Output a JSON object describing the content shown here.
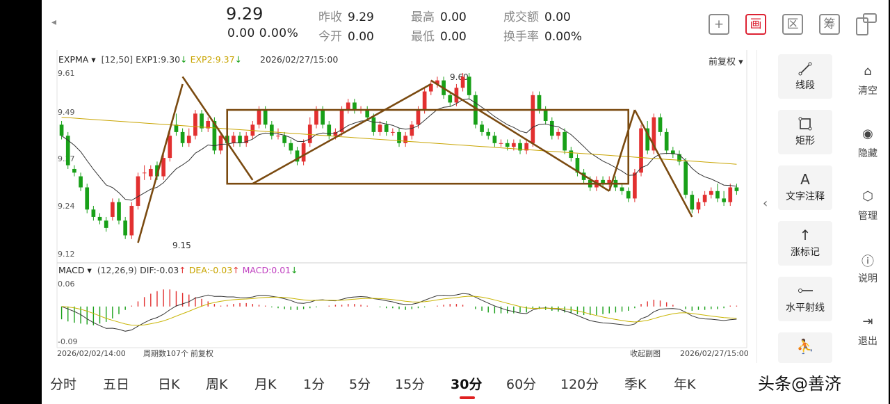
{
  "header": {
    "back_icon": "chevron-left",
    "price": "9.29",
    "change": "0.00  0.00%",
    "quotes": [
      {
        "label": "昨收",
        "value": "9.29"
      },
      {
        "label": "今开",
        "value": "0.00"
      },
      {
        "label": "最高",
        "value": "0.00"
      },
      {
        "label": "最低",
        "value": "0.00"
      },
      {
        "label": "成交额",
        "value": "0.00"
      },
      {
        "label": "换手率",
        "value": "0.00%"
      }
    ],
    "tool_icons": {
      "add": "+",
      "draw": "画",
      "range": "区",
      "chips": "筹"
    }
  },
  "kline_panel": {
    "indicator": "EXPMA",
    "params": "[12,50]",
    "exp1_label": "EXP1:9.30",
    "exp2_label": "EXP2:9.37",
    "datetime": "2026/02/27/15:00",
    "adjust": "前复权",
    "y_labels": [
      "9.61",
      "9.49",
      "9.37",
      "9.24",
      "9.12"
    ],
    "high_mark": "9.60",
    "low_mark": "9.15"
  },
  "macd_panel": {
    "indicator": "MACD",
    "params": "(12,26,9)",
    "dif_label": "DIF:-0.03",
    "dea_label": "DEA:-0.03",
    "macd_label": "MACD:0.01",
    "y_top": "0.06",
    "y_bottom": "-0.09"
  },
  "footer": {
    "start": "2026/02/02/14:00",
    "count": "周期数107个",
    "adjust": "前复权",
    "collapse": "收起副图",
    "end": "2026/02/27/15:00"
  },
  "tools": [
    "线段",
    "矩形",
    "文字注释",
    "涨标记",
    "水平射线"
  ],
  "side_actions": [
    "清空",
    "隐藏",
    "管理",
    "说明",
    "退出"
  ],
  "tabs": [
    "分时",
    "五日",
    "日K",
    "周K",
    "月K",
    "1分",
    "5分",
    "15分",
    "30分",
    "60分",
    "120分",
    "季K",
    "年K"
  ],
  "active_tab": "30分",
  "watermark": "头条@善济",
  "colors": {
    "up": "#e23030",
    "down": "#18a018",
    "exp1": "#333333",
    "exp2": "#c8a400",
    "drawing": "#7a4a10",
    "dea": "#c8b400",
    "macd_label": "#c040c0"
  },
  "chart_data": {
    "type": "candlestick",
    "x_range": [
      "2026/02/02/14:00",
      "2026/02/27/15:00"
    ],
    "periods": 107,
    "ylim": [
      9.12,
      9.61
    ],
    "y_ticks": [
      9.61,
      9.49,
      9.37,
      9.24,
      9.12
    ],
    "open": [
      9.47,
      9.44,
      9.35,
      9.33,
      9.3,
      9.24,
      9.22,
      9.21,
      9.22,
      9.26,
      9.21,
      9.17,
      9.25,
      9.34,
      9.33,
      9.36,
      9.33,
      9.38,
      9.47,
      9.45,
      9.42,
      9.44,
      9.5,
      9.46,
      9.48,
      9.4,
      9.44,
      9.42,
      9.44,
      9.42,
      9.44,
      9.47,
      9.51,
      9.47,
      9.44,
      9.44,
      9.42,
      9.4,
      9.37,
      9.42,
      9.47,
      9.51,
      9.47,
      9.44,
      9.45,
      9.51,
      9.53,
      9.51,
      9.51,
      9.49,
      9.45,
      9.47,
      9.45,
      9.45,
      9.42,
      9.44,
      9.47,
      9.51,
      9.56,
      9.58,
      9.59,
      9.55,
      9.53,
      9.57,
      9.6,
      9.55,
      9.47,
      9.45,
      9.44,
      9.42,
      9.42,
      9.41,
      9.42,
      9.4,
      9.42,
      9.55,
      9.51,
      9.48,
      9.44,
      9.45,
      9.4,
      9.38,
      9.34,
      9.32,
      9.3,
      9.32,
      9.31,
      9.32,
      9.3,
      9.29,
      9.27,
      9.34,
      9.46,
      9.4,
      9.49,
      9.45,
      9.4,
      9.39,
      9.37,
      9.28,
      9.24,
      9.26,
      9.28,
      9.29,
      9.27,
      9.26,
      9.3
    ],
    "close": [
      9.44,
      9.36,
      9.34,
      9.3,
      9.24,
      9.22,
      9.21,
      9.19,
      9.26,
      9.21,
      9.17,
      9.25,
      9.33,
      9.34,
      9.35,
      9.33,
      9.38,
      9.44,
      9.45,
      9.42,
      9.44,
      9.5,
      9.46,
      9.48,
      9.4,
      9.44,
      9.42,
      9.44,
      9.42,
      9.44,
      9.47,
      9.51,
      9.47,
      9.44,
      9.44,
      9.42,
      9.4,
      9.37,
      9.42,
      9.47,
      9.51,
      9.47,
      9.44,
      9.45,
      9.51,
      9.53,
      9.51,
      9.51,
      9.49,
      9.45,
      9.47,
      9.45,
      9.45,
      9.42,
      9.44,
      9.47,
      9.51,
      9.56,
      9.58,
      9.59,
      9.55,
      9.53,
      9.57,
      9.6,
      9.55,
      9.47,
      9.45,
      9.44,
      9.42,
      9.42,
      9.41,
      9.42,
      9.4,
      9.42,
      9.55,
      9.51,
      9.48,
      9.44,
      9.45,
      9.4,
      9.38,
      9.34,
      9.32,
      9.3,
      9.32,
      9.31,
      9.32,
      9.3,
      9.29,
      9.27,
      9.34,
      9.46,
      9.4,
      9.49,
      9.45,
      9.4,
      9.39,
      9.37,
      9.28,
      9.24,
      9.26,
      9.28,
      9.29,
      9.27,
      9.26,
      9.3,
      9.29
    ],
    "high": [
      9.48,
      9.45,
      9.36,
      9.34,
      9.31,
      9.25,
      9.23,
      9.22,
      9.27,
      9.27,
      9.22,
      9.26,
      9.34,
      9.36,
      9.36,
      9.37,
      9.39,
      9.46,
      9.5,
      9.46,
      9.46,
      9.51,
      9.51,
      9.49,
      9.49,
      9.45,
      9.45,
      9.45,
      9.45,
      9.45,
      9.48,
      9.52,
      9.52,
      9.48,
      9.46,
      9.45,
      9.43,
      9.41,
      9.43,
      9.49,
      9.52,
      9.52,
      9.48,
      9.46,
      9.52,
      9.54,
      9.54,
      9.52,
      9.52,
      9.5,
      9.48,
      9.48,
      9.46,
      9.46,
      9.45,
      9.48,
      9.52,
      9.57,
      9.59,
      9.6,
      9.6,
      9.56,
      9.58,
      9.61,
      9.61,
      9.56,
      9.48,
      9.46,
      9.45,
      9.43,
      9.43,
      9.43,
      9.43,
      9.43,
      9.56,
      9.56,
      9.52,
      9.49,
      9.46,
      9.46,
      9.41,
      9.39,
      9.35,
      9.33,
      9.33,
      9.33,
      9.33,
      9.33,
      9.31,
      9.3,
      9.35,
      9.47,
      9.48,
      9.5,
      9.5,
      9.46,
      9.41,
      9.4,
      9.38,
      9.29,
      9.27,
      9.29,
      9.3,
      9.31,
      9.29,
      9.31,
      9.31
    ],
    "low": [
      9.43,
      9.35,
      9.33,
      9.29,
      9.23,
      9.21,
      9.2,
      9.18,
      9.21,
      9.2,
      9.16,
      9.16,
      9.24,
      9.32,
      9.32,
      9.32,
      9.32,
      9.37,
      9.44,
      9.41,
      9.41,
      9.43,
      9.45,
      9.45,
      9.39,
      9.39,
      9.41,
      9.41,
      9.41,
      9.41,
      9.43,
      9.46,
      9.46,
      9.43,
      9.43,
      9.41,
      9.39,
      9.36,
      9.36,
      9.41,
      9.46,
      9.46,
      9.43,
      9.43,
      9.44,
      9.5,
      9.5,
      9.5,
      9.48,
      9.44,
      9.44,
      9.44,
      9.44,
      9.41,
      9.41,
      9.43,
      9.46,
      9.5,
      9.55,
      9.57,
      9.54,
      9.52,
      9.52,
      9.56,
      9.54,
      9.46,
      9.44,
      9.43,
      9.41,
      9.41,
      9.4,
      9.4,
      9.39,
      9.39,
      9.41,
      9.5,
      9.47,
      9.43,
      9.43,
      9.39,
      9.37,
      9.33,
      9.31,
      9.29,
      9.29,
      9.3,
      9.3,
      9.29,
      9.28,
      9.26,
      9.26,
      9.33,
      9.39,
      9.39,
      9.44,
      9.39,
      9.38,
      9.36,
      9.27,
      9.23,
      9.23,
      9.25,
      9.27,
      9.26,
      9.25,
      9.25,
      9.28
    ],
    "macd_ylim": [
      -0.09,
      0.06
    ],
    "macd_hist": [
      -0.03,
      -0.035,
      -0.038,
      -0.04,
      -0.042,
      -0.044,
      -0.04,
      -0.036,
      -0.028,
      -0.018,
      -0.008,
      0.002,
      0.012,
      0.022,
      0.03,
      0.036,
      0.04,
      0.04,
      0.036,
      0.032,
      0.028,
      0.022,
      0.018,
      0.012,
      0.006,
      0.002,
      0.004,
      0.006,
      0.008,
      0.008,
      0.006,
      0.004,
      0.002,
      -0.002,
      -0.004,
      -0.006,
      -0.008,
      -0.008,
      -0.006,
      -0.004,
      -0.002,
      0.0,
      0.002,
      0.004,
      0.004,
      0.006,
      0.006,
      0.004,
      0.002,
      0.0,
      -0.002,
      -0.004,
      -0.004,
      -0.006,
      -0.008,
      -0.006,
      -0.004,
      -0.002,
      0.0,
      0.002,
      0.004,
      0.006,
      0.006,
      0.004,
      0.0,
      -0.006,
      -0.01,
      -0.014,
      -0.016,
      -0.016,
      -0.016,
      -0.016,
      -0.014,
      -0.014,
      -0.004,
      -0.006,
      -0.008,
      -0.01,
      -0.012,
      -0.014,
      -0.016,
      -0.018,
      -0.02,
      -0.02,
      -0.02,
      -0.018,
      -0.016,
      -0.014,
      -0.012,
      -0.01,
      -0.004,
      0.006,
      0.012,
      0.016,
      0.014,
      0.01,
      0.004,
      0.0,
      -0.006,
      -0.01,
      -0.008,
      -0.008,
      -0.006,
      -0.006,
      -0.004,
      0.002,
      0.002
    ],
    "drawings": {
      "trendlines": [
        [
          [
            12,
            9.15
          ],
          [
            19,
            9.58
          ]
        ],
        [
          [
            19,
            9.6
          ],
          [
            30,
            9.32
          ]
        ],
        [
          [
            30,
            9.31
          ],
          [
            58,
            9.58
          ]
        ],
        [
          [
            58,
            9.59
          ],
          [
            86,
            9.29
          ]
        ],
        [
          [
            86,
            9.29
          ],
          [
            90,
            9.51
          ]
        ],
        [
          [
            90,
            9.51
          ],
          [
            99,
            9.22
          ]
        ]
      ],
      "rectangle": {
        "x": [
          26,
          89
        ],
        "y": [
          9.31,
          9.51
        ]
      }
    }
  }
}
